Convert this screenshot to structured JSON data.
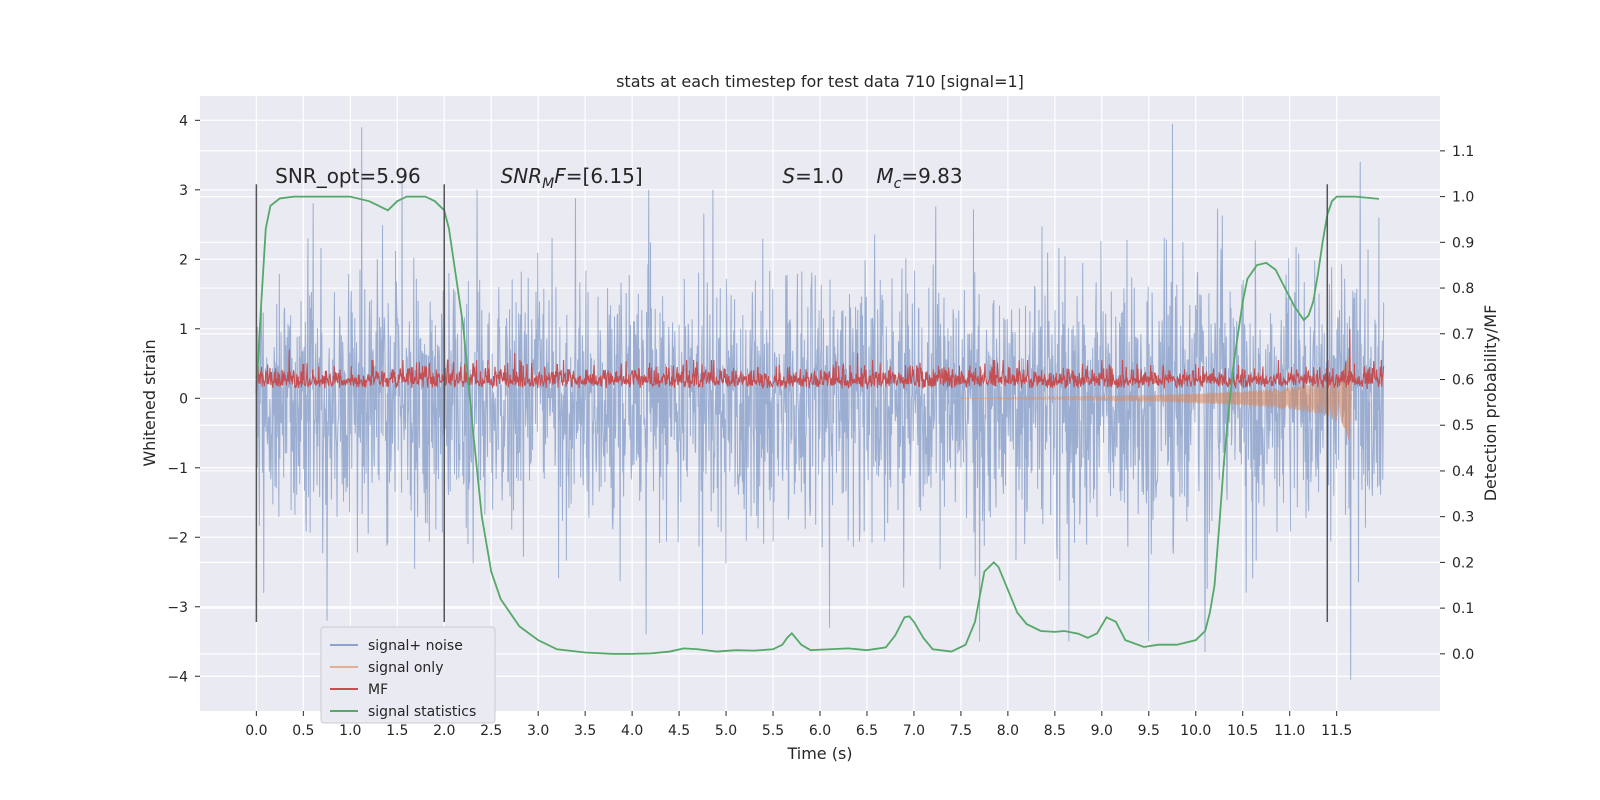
{
  "chart_data": {
    "type": "line",
    "title": "stats at each timestep for test data 710 [signal=1]",
    "xlabel": "Time (s)",
    "ylabel": "Whitened strain",
    "y2label": "Detection probability/MF",
    "xlim": [
      -0.6,
      12.6
    ],
    "ylim": [
      -4.5,
      4.35
    ],
    "y2lim": [
      -0.125,
      1.22
    ],
    "x_ticks": [
      0.0,
      0.5,
      1.0,
      1.5,
      2.0,
      2.5,
      3.0,
      3.5,
      4.0,
      4.5,
      5.0,
      5.5,
      6.0,
      6.5,
      7.0,
      7.5,
      8.0,
      8.5,
      9.0,
      9.5,
      10.0,
      10.5,
      11.0,
      11.5
    ],
    "x_tick_labels": [
      "0.0",
      "0.5",
      "1.0",
      "1.5",
      "2.0",
      "2.5",
      "3.0",
      "3.5",
      "4.0",
      "4.5",
      "5.0",
      "5.5",
      "6.0",
      "6.5",
      "7.0",
      "7.5",
      "8.0",
      "8.5",
      "9.0",
      "9.5",
      "10.0",
      "10.5",
      "11.0",
      "11.5"
    ],
    "y_ticks": [
      4,
      3,
      2,
      1,
      0,
      -1,
      -2,
      -3,
      -4
    ],
    "y_tick_labels": [
      "4",
      "3",
      "2",
      "1",
      "0",
      "−1",
      "−2",
      "−3",
      "−4"
    ],
    "y2_ticks": [
      1.1,
      1.0,
      0.9,
      0.8,
      0.7,
      0.6,
      0.5,
      0.4,
      0.3,
      0.2,
      0.1,
      0.0
    ],
    "y2_tick_labels": [
      "1.1",
      "1.0",
      "0.9",
      "0.8",
      "0.7",
      "0.6",
      "0.5",
      "0.4",
      "0.3",
      "0.2",
      "0.1",
      "0.0"
    ],
    "grid": true,
    "background": "#eaeaf2",
    "legend_position": "lower-left",
    "annotations": [
      {
        "text": "SNR_opt=5.96",
        "x": 0.2,
        "y": 3.1
      },
      {
        "text": "SNR_MF=[6.15]",
        "x": 2.6,
        "y": 3.1
      },
      {
        "text": "S=1.0",
        "x": 5.6,
        "y": 3.1
      },
      {
        "text": "M_c=9.83",
        "x": 6.6,
        "y": 3.1
      }
    ],
    "vertical_markers": [
      0.0,
      2.0,
      11.4
    ],
    "series": [
      {
        "name": "signal+ noise",
        "color": "#4c72b0",
        "axis": "left",
        "x_range": [
          0.0,
          12.0
        ],
        "noise_std": 0.95,
        "extremes": [
          {
            "x": 0.08,
            "y": -2.8
          },
          {
            "x": 0.55,
            "y": 2.3
          },
          {
            "x": 0.75,
            "y": -3.2
          },
          {
            "x": 1.12,
            "y": 3.9
          },
          {
            "x": 1.55,
            "y": 3.1
          },
          {
            "x": 2.35,
            "y": 3.0
          },
          {
            "x": 4.15,
            "y": -3.4
          },
          {
            "x": 4.75,
            "y": -3.4
          },
          {
            "x": 6.1,
            "y": -3.3
          },
          {
            "x": 7.7,
            "y": -3.5
          },
          {
            "x": 8.65,
            "y": -3.5
          },
          {
            "x": 9.5,
            "y": -3.5
          },
          {
            "x": 9.75,
            "y": 3.95
          },
          {
            "x": 10.1,
            "y": -3.65
          },
          {
            "x": 11.65,
            "y": -4.05
          },
          {
            "x": 11.75,
            "y": 3.4
          },
          {
            "x": 11.95,
            "y": 2.6
          }
        ]
      },
      {
        "name": "signal only",
        "color": "#dd8452",
        "axis": "left",
        "envelope": [
          [
            7.5,
            0.0
          ],
          [
            8.5,
            0.02
          ],
          [
            9.5,
            0.04
          ],
          [
            10.0,
            0.07
          ],
          [
            10.5,
            0.1
          ],
          [
            11.0,
            0.16
          ],
          [
            11.4,
            0.25
          ],
          [
            11.6,
            0.45
          ],
          [
            11.62,
            0.6
          ],
          [
            11.64,
            0.9
          ],
          [
            11.66,
            0.2
          ]
        ]
      },
      {
        "name": "MF",
        "color": "#c44e52",
        "axis": "left",
        "x_range": [
          0.0,
          12.0
        ],
        "baseline": 0.25,
        "spread": 0.18,
        "peaks": [
          {
            "x": 0.35,
            "y": 0.7
          },
          {
            "x": 2.75,
            "y": 0.65
          },
          {
            "x": 6.4,
            "y": 0.65
          },
          {
            "x": 11.64,
            "y": 1.0
          }
        ]
      },
      {
        "name": "signal statistics",
        "color": "#55a868",
        "axis": "right",
        "x": [
          0.0,
          0.05,
          0.1,
          0.15,
          0.25,
          0.4,
          0.6,
          0.8,
          1.0,
          1.2,
          1.3,
          1.4,
          1.5,
          1.6,
          1.8,
          1.9,
          2.0,
          2.05,
          2.1,
          2.2,
          2.3,
          2.4,
          2.5,
          2.6,
          2.8,
          3.0,
          3.2,
          3.5,
          3.8,
          4.0,
          4.2,
          4.4,
          4.55,
          4.7,
          4.9,
          5.1,
          5.3,
          5.5,
          5.6,
          5.65,
          5.7,
          5.8,
          5.9,
          6.1,
          6.3,
          6.5,
          6.7,
          6.8,
          6.9,
          6.95,
          7.0,
          7.1,
          7.2,
          7.4,
          7.55,
          7.65,
          7.75,
          7.85,
          7.9,
          8.0,
          8.1,
          8.2,
          8.35,
          8.5,
          8.6,
          8.75,
          8.85,
          8.95,
          9.05,
          9.15,
          9.25,
          9.45,
          9.6,
          9.8,
          10.0,
          10.1,
          10.15,
          10.2,
          10.25,
          10.3,
          10.35,
          10.4,
          10.45,
          10.5,
          10.55,
          10.65,
          10.75,
          10.85,
          10.95,
          11.05,
          11.15,
          11.2,
          11.25,
          11.3,
          11.35,
          11.4,
          11.45,
          11.5,
          11.55,
          11.6,
          11.7,
          11.8,
          11.95
        ],
        "values": [
          0.57,
          0.76,
          0.93,
          0.98,
          0.996,
          1.0,
          1.0,
          1.0,
          1.0,
          0.99,
          0.98,
          0.97,
          0.99,
          1.0,
          1.0,
          0.99,
          0.97,
          0.93,
          0.86,
          0.72,
          0.5,
          0.3,
          0.18,
          0.12,
          0.06,
          0.03,
          0.01,
          0.003,
          0.0,
          0.0,
          0.001,
          0.005,
          0.012,
          0.01,
          0.005,
          0.008,
          0.007,
          0.01,
          0.02,
          0.035,
          0.045,
          0.02,
          0.008,
          0.01,
          0.012,
          0.008,
          0.014,
          0.04,
          0.08,
          0.082,
          0.07,
          0.035,
          0.01,
          0.005,
          0.02,
          0.07,
          0.18,
          0.2,
          0.19,
          0.14,
          0.09,
          0.065,
          0.05,
          0.048,
          0.05,
          0.044,
          0.035,
          0.045,
          0.08,
          0.07,
          0.03,
          0.015,
          0.02,
          0.02,
          0.03,
          0.05,
          0.09,
          0.15,
          0.28,
          0.42,
          0.53,
          0.63,
          0.7,
          0.77,
          0.82,
          0.85,
          0.855,
          0.84,
          0.8,
          0.76,
          0.73,
          0.74,
          0.77,
          0.83,
          0.9,
          0.96,
          0.99,
          1.0,
          1.0,
          1.0,
          1.0,
          0.998,
          0.995
        ]
      }
    ]
  }
}
